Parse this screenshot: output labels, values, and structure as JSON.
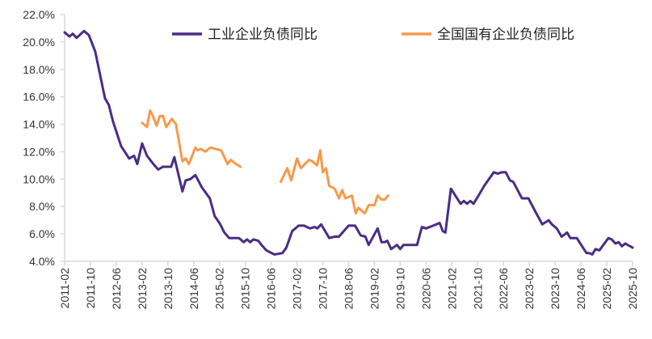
{
  "chart_data": {
    "type": "line",
    "title": "",
    "xlabel": "",
    "ylabel": "",
    "x_unit": "month index (0 = 2011-02)",
    "x_range": [
      0,
      176
    ],
    "ylim": [
      4.0,
      22.0
    ],
    "y_ticks": [
      "4.0%",
      "6.0%",
      "8.0%",
      "10.0%",
      "12.0%",
      "14.0%",
      "16.0%",
      "18.0%",
      "20.0%",
      "22.0%"
    ],
    "x_tick_labels": [
      "2011-02",
      "2011-10",
      "2012-06",
      "2013-02",
      "2013-10",
      "2014-06",
      "2015-02",
      "2015-10",
      "2016-06",
      "2017-02",
      "2017-10",
      "2018-06",
      "2019-02",
      "2019-10",
      "2020-06",
      "2021-02",
      "2021-10",
      "2022-06",
      "2023-02",
      "2023-10",
      "2024-06",
      "2025-02",
      "2025-10"
    ],
    "grid": false,
    "legend_position": "top",
    "series": [
      {
        "name": "工业企业负债同比",
        "color": "#4B2C84",
        "segments": [
          [
            [
              0,
              20.7
            ],
            [
              1.5,
              20.4
            ],
            [
              2.5,
              20.6
            ],
            [
              3.7,
              20.3
            ],
            [
              6,
              20.8
            ],
            [
              7.5,
              20.5
            ],
            [
              9.5,
              19.3
            ],
            [
              12.5,
              15.9
            ],
            [
              13.7,
              15.4
            ],
            [
              15,
              14.2
            ],
            [
              17.5,
              12.4
            ],
            [
              20,
              11.5
            ],
            [
              21.5,
              11.7
            ],
            [
              22.5,
              11.1
            ],
            [
              24,
              12.6
            ],
            [
              25.5,
              11.7
            ],
            [
              27.5,
              11.1
            ],
            [
              29,
              10.7
            ],
            [
              30.5,
              10.9
            ],
            [
              33,
              10.9
            ],
            [
              34,
              11.6
            ],
            [
              36.5,
              9.1
            ],
            [
              37.5,
              9.9
            ],
            [
              39,
              10.0
            ],
            [
              40.5,
              10.3
            ],
            [
              42.5,
              9.4
            ],
            [
              45,
              8.6
            ],
            [
              46.5,
              7.3
            ],
            [
              48,
              6.8
            ],
            [
              49.5,
              6.1
            ],
            [
              51,
              5.7
            ],
            [
              54,
              5.7
            ],
            [
              55.5,
              5.4
            ],
            [
              56.5,
              5.6
            ],
            [
              57.5,
              5.4
            ],
            [
              58.5,
              5.6
            ],
            [
              60,
              5.5
            ],
            [
              61,
              5.2
            ],
            [
              62.5,
              4.8
            ],
            [
              65,
              4.5
            ],
            [
              67.5,
              4.6
            ],
            [
              68.7,
              5.0
            ],
            [
              70.5,
              6.2
            ],
            [
              72.5,
              6.6
            ],
            [
              74.2,
              6.6
            ],
            [
              76,
              6.4
            ],
            [
              77.5,
              6.5
            ],
            [
              78.3,
              6.4
            ],
            [
              79.5,
              6.7
            ],
            [
              82,
              5.7
            ],
            [
              83.7,
              5.8
            ],
            [
              85,
              5.8
            ],
            [
              88,
              6.6
            ],
            [
              90,
              6.6
            ],
            [
              91.7,
              5.9
            ],
            [
              93.2,
              5.8
            ],
            [
              94.2,
              5.2
            ],
            [
              97,
              6.4
            ],
            [
              98.2,
              5.4
            ],
            [
              99.2,
              5.4
            ],
            [
              100,
              5.5
            ],
            [
              101.2,
              4.9
            ],
            [
              103,
              5.2
            ],
            [
              104,
              4.9
            ],
            [
              105,
              5.2
            ],
            [
              109.2,
              5.2
            ],
            [
              110.7,
              6.5
            ],
            [
              112,
              6.4
            ],
            [
              114.2,
              6.6
            ],
            [
              116.2,
              6.8
            ],
            [
              117.2,
              6.2
            ],
            [
              118,
              6.1
            ],
            [
              119.7,
              9.3
            ],
            [
              122.7,
              8.2
            ],
            [
              123.7,
              8.4
            ],
            [
              124.7,
              8.2
            ],
            [
              125.7,
              8.4
            ],
            [
              126.7,
              8.2
            ],
            [
              128,
              8.7
            ],
            [
              130,
              9.5
            ],
            [
              133,
              10.5
            ],
            [
              134.2,
              10.4
            ],
            [
              135.5,
              10.5
            ],
            [
              136.7,
              10.5
            ],
            [
              138,
              9.9
            ],
            [
              139,
              9.8
            ],
            [
              141.7,
              8.6
            ],
            [
              143.7,
              8.6
            ],
            [
              145.7,
              7.7
            ],
            [
              148,
              6.7
            ],
            [
              150,
              7.0
            ],
            [
              151,
              6.7
            ],
            [
              152.5,
              6.4
            ],
            [
              154,
              5.8
            ],
            [
              155.7,
              6.1
            ],
            [
              156.7,
              5.7
            ],
            [
              158.7,
              5.7
            ],
            [
              161.7,
              4.6
            ],
            [
              162.5,
              4.6
            ],
            [
              163.5,
              4.5
            ],
            [
              164.5,
              4.9
            ],
            [
              165.7,
              4.8
            ],
            [
              168.5,
              5.7
            ],
            [
              169.5,
              5.6
            ],
            [
              170.7,
              5.3
            ],
            [
              171.7,
              5.4
            ],
            [
              172.7,
              5.1
            ],
            [
              173.7,
              5.3
            ],
            [
              176,
              5.0
            ]
          ]
        ]
      },
      {
        "name": "全国国有企业负债同比",
        "color": "#F7994A",
        "segments": [
          [
            [
              24,
              14.1
            ],
            [
              25.5,
              13.8
            ],
            [
              26.5,
              15.0
            ],
            [
              27.2,
              14.7
            ],
            [
              28.5,
              13.9
            ],
            [
              29.5,
              14.6
            ],
            [
              30.5,
              14.6
            ],
            [
              31.5,
              13.8
            ],
            [
              33.2,
              14.4
            ],
            [
              34.5,
              14.0
            ],
            [
              36.5,
              11.3
            ],
            [
              37.5,
              11.5
            ],
            [
              38.5,
              11.1
            ],
            [
              40.5,
              12.3
            ],
            [
              41.2,
              12.1
            ],
            [
              42.2,
              12.2
            ],
            [
              43.5,
              12.0
            ],
            [
              45.2,
              12.3
            ],
            [
              48.5,
              12.1
            ],
            [
              50.5,
              11.1
            ],
            [
              51.5,
              11.4
            ],
            [
              52.5,
              11.2
            ],
            [
              54.5,
              10.9
            ]
          ],
          [
            [
              67,
              9.8
            ],
            [
              69,
              10.8
            ],
            [
              70.2,
              9.9
            ],
            [
              72,
              11.5
            ],
            [
              73.2,
              10.8
            ],
            [
              75.7,
              11.4
            ],
            [
              76.7,
              11.3
            ],
            [
              78.2,
              11.0
            ],
            [
              79.2,
              12.1
            ],
            [
              80,
              10.5
            ],
            [
              81,
              10.8
            ],
            [
              82,
              9.5
            ],
            [
              83.7,
              9.3
            ],
            [
              85,
              8.6
            ],
            [
              86,
              9.2
            ],
            [
              87,
              8.6
            ],
            [
              89,
              8.8
            ],
            [
              90.2,
              7.5
            ],
            [
              91,
              7.9
            ],
            [
              93,
              7.5
            ],
            [
              94.2,
              8.1
            ],
            [
              96,
              8.1
            ],
            [
              97,
              8.8
            ],
            [
              98.2,
              8.5
            ],
            [
              99.2,
              8.5
            ],
            [
              100.2,
              8.8
            ]
          ]
        ]
      }
    ]
  }
}
